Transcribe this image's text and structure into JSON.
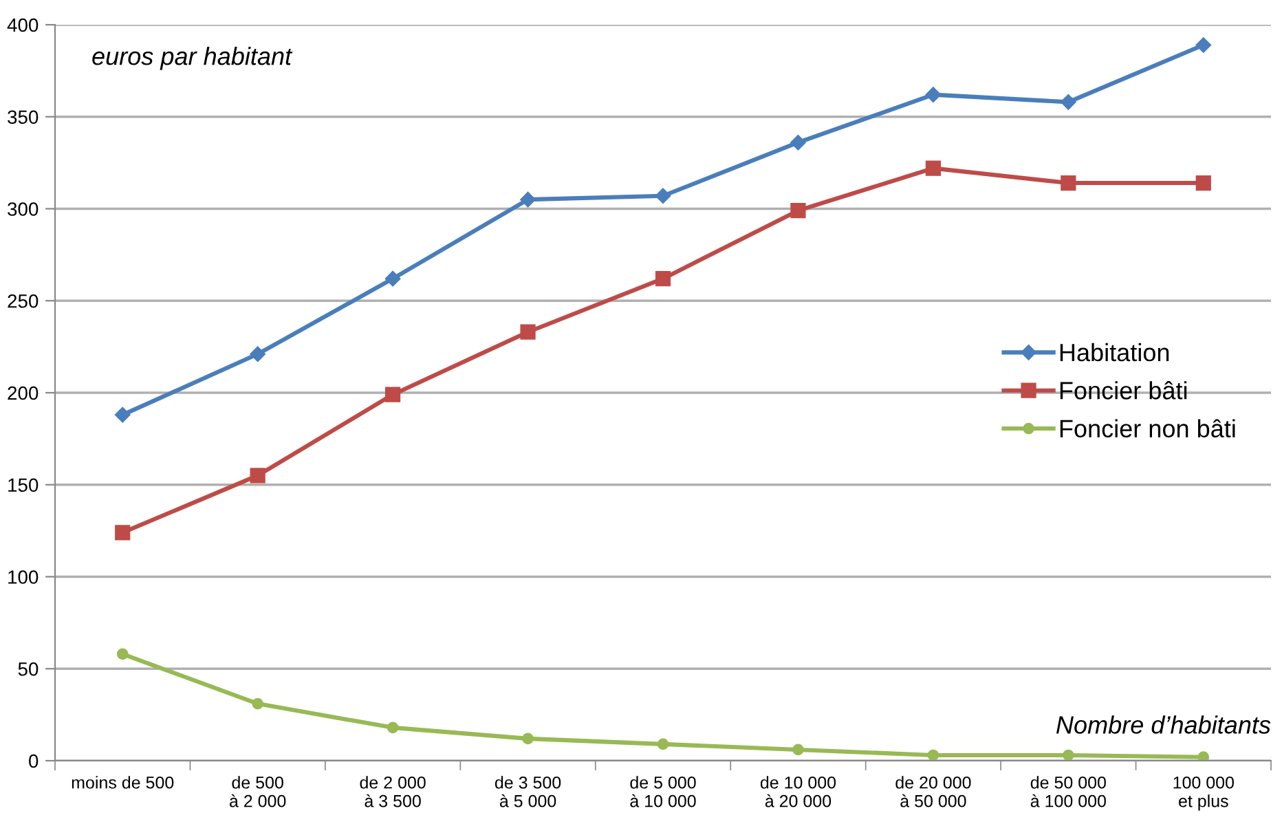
{
  "chart_data": {
    "type": "line",
    "ylabel": "euros par habitant",
    "xlabel": "Nombre d’habitants",
    "categories": [
      "moins de 500",
      "de 500\nà 2 000",
      "de 2 000\nà 3 500",
      "de 3 500\nà 5 000",
      "de 5 000\nà 10 000",
      "de 10 000\nà 20 000",
      "de 20 000\nà 50 000",
      "de 50 000\nà 100 000",
      "100 000\net plus"
    ],
    "series": [
      {
        "name": "Habitation",
        "color": "#4a7ebb",
        "marker": "diamond",
        "values": [
          188,
          221,
          262,
          305,
          307,
          336,
          362,
          358,
          389
        ]
      },
      {
        "name": "Foncier bâti",
        "color": "#be4b48",
        "marker": "square",
        "values": [
          124,
          155,
          199,
          233,
          262,
          299,
          322,
          314,
          314
        ]
      },
      {
        "name": "Foncier non bâti",
        "color": "#98b954",
        "marker": "circle",
        "values": [
          58,
          31,
          18,
          12,
          9,
          6,
          3,
          3,
          2
        ]
      }
    ],
    "ylim": [
      0,
      400
    ],
    "yticks": [
      0,
      50,
      100,
      150,
      200,
      250,
      300,
      350,
      400
    ],
    "grid": "y",
    "legend": "right",
    "line_style": "solid"
  }
}
